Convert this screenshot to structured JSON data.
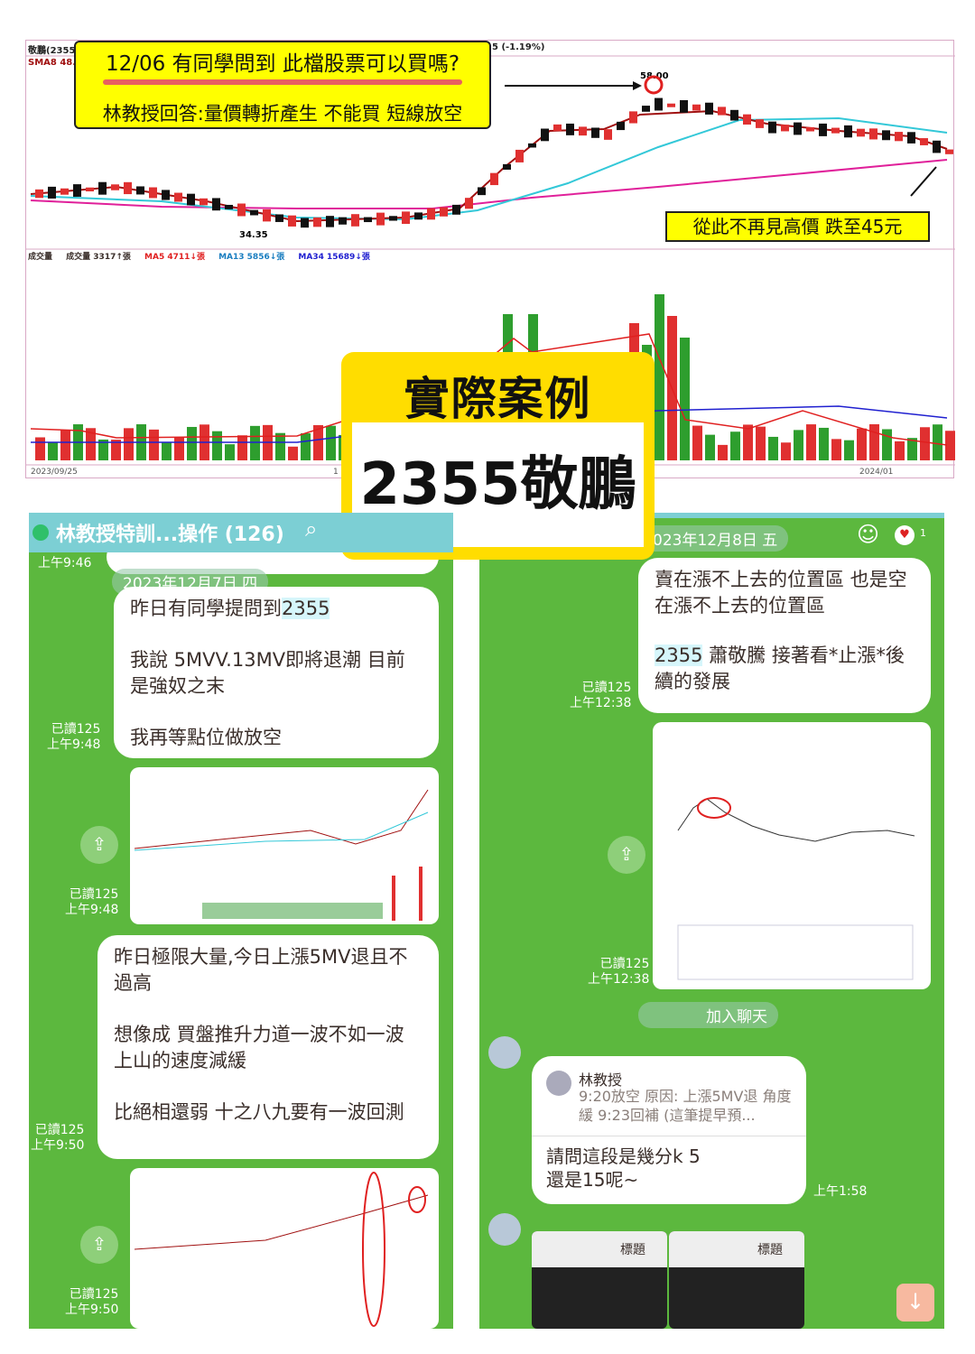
{
  "chart": {
    "stock_label": "敬鵬(2355)",
    "change_label": "5 (-1.19%)",
    "sma_label": "SMA8 48.",
    "high_label": "58.00",
    "low_label": "34.35",
    "volume_legend": {
      "title": "成交量",
      "vol": "成交量 3317↑張",
      "ma5": "MA5 4711↓張",
      "ma13": "MA13 5856↓張",
      "ma34": "MA34 15689↓張"
    },
    "x_labels": [
      "2023/09/25",
      "1",
      "2024/01"
    ],
    "colors": {
      "up": "#e03030",
      "down": "#2e9e2e",
      "ma_short": "#a01010",
      "ma_mid": "#33c8d8",
      "ma_long": "#e0209a"
    }
  },
  "callout": {
    "line1": "12/06 有同學問到 此檔股票可以買嗎?",
    "line2": "林教授回答:量價轉折產生 不能買 短線放空"
  },
  "tag": "從此不再見高價 跌至45元",
  "overlay": {
    "title": "實際案例",
    "stock": "2355敬鵬"
  },
  "left_chat": {
    "title": "林教授特訓...操作 (126)",
    "top_time": "上午9:46",
    "date": "2023年12月7日 四",
    "msg1": {
      "line1_pre": "昨日有同學提問到",
      "line1_hl": "2355",
      "p2": "我說 5MVV.13MV即將退潮 目前是強奴之末",
      "p3": "我再等點位做放空",
      "read": "已讀125",
      "time": "上午9:48"
    },
    "img1": {
      "read": "已讀125",
      "time": "上午9:48"
    },
    "msg2": {
      "p1": "昨日極限大量,今日上漲5MV退且不過高",
      "p2": "想像成 買盤推升力道一波不如一波 上山的速度減緩",
      "p3": "比絕相還弱 十之八九要有一波回測",
      "read": "已讀125",
      "time": "上午9:50"
    },
    "img2": {
      "read": "已讀125",
      "time": "上午9:50"
    }
  },
  "right_chat": {
    "date": "023年12月8日 五",
    "reaction_count": "1",
    "msg1": {
      "p1": "賣在漲不上去的位置區 也是空在漲不上去的位置區",
      "hl": "2355",
      "p2": "蕭敬騰 接著看*止漲*後續的發展",
      "read": "已讀125",
      "time": "上午12:38"
    },
    "img": {
      "read": "已讀125",
      "time": "上午12:38"
    },
    "join": "加入聊天",
    "reply": {
      "quoted_name": "林教授",
      "quoted_text": "9:20放空 原因: 上漲5MV退 角度緩 9:23回補 (這筆提早預...",
      "text": "請問這段是幾分k 5還是15呢~",
      "time": "上午1:58"
    },
    "thumb_label": "標題"
  }
}
